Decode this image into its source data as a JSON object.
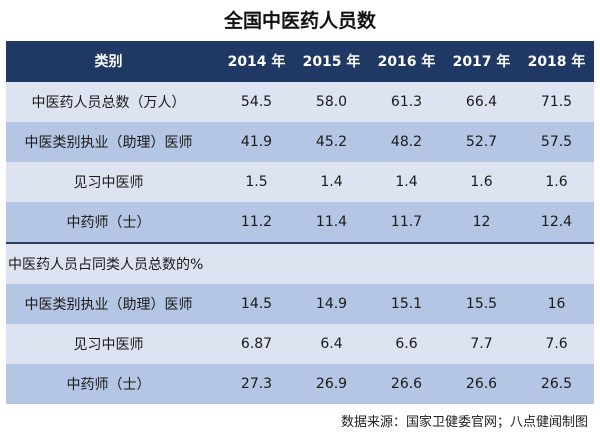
{
  "title": "全国中医药人员数",
  "table": {
    "header": {
      "category": "类别",
      "years": [
        "2014 年",
        "2015 年",
        "2016 年",
        "2017 年",
        "2018 年"
      ]
    },
    "rows": [
      {
        "label": "中医药人员总数（万人）",
        "values": [
          "54.5",
          "58.0",
          "61.3",
          "66.4",
          "71.5"
        ]
      },
      {
        "label": "中医类别执业（助理）医师",
        "values": [
          "41.9",
          "45.2",
          "48.2",
          "52.7",
          "57.5"
        ]
      },
      {
        "label": "见习中医师",
        "values": [
          "1.5",
          "1.4",
          "1.4",
          "1.6",
          "1.6"
        ]
      },
      {
        "label": "中药师（士）",
        "values": [
          "11.2",
          "11.4",
          "11.7",
          "12",
          "12.4"
        ]
      }
    ],
    "section_label": "中医药人员占同类人员总数的%",
    "pct_rows": [
      {
        "label": "中医类别执业（助理）医师",
        "values": [
          "14.5",
          "14.9",
          "15.1",
          "15.5",
          "16"
        ]
      },
      {
        "label": "见习中医师",
        "values": [
          "6.87",
          "6.4",
          "6.6",
          "7.7",
          "7.6"
        ]
      },
      {
        "label": "中药师（士）",
        "values": [
          "27.3",
          "26.9",
          "26.6",
          "26.6",
          "26.5"
        ]
      }
    ]
  },
  "footer": "数据来源：国家卫健委官网；八点健闻制图",
  "colors": {
    "header_bg": "#1f3864",
    "row_light": "#dde3f1",
    "row_dark": "#b4c6e4"
  }
}
